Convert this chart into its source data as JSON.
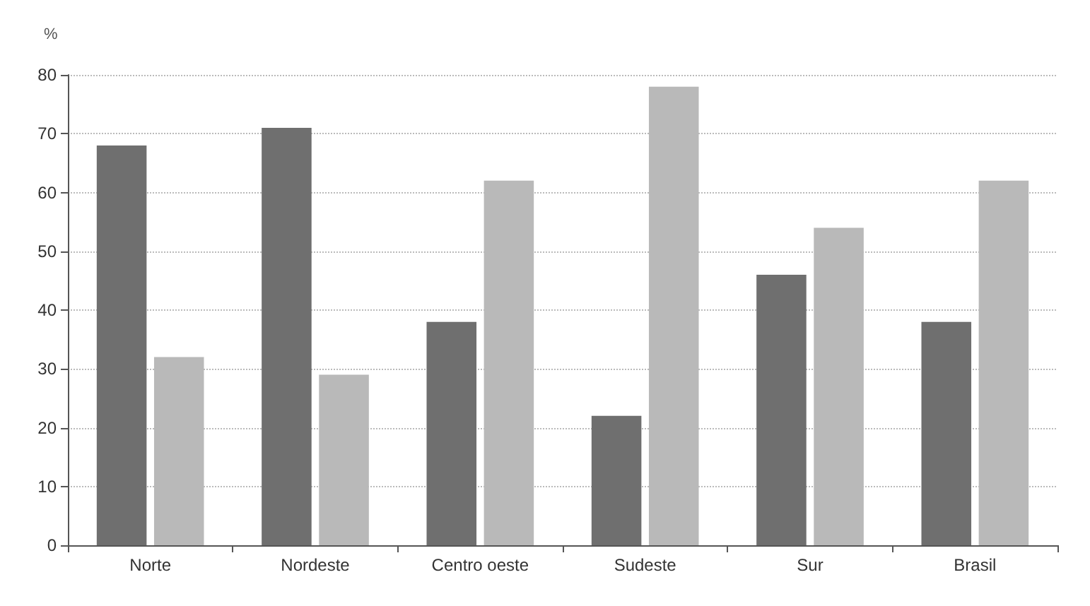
{
  "chart_data": {
    "type": "bar",
    "ylabel": "%",
    "categories": [
      "Norte",
      "Nordeste",
      "Centro oeste",
      "Sudeste",
      "Sur",
      "Brasil"
    ],
    "series": [
      {
        "color": "#6f6f6f",
        "values": [
          68,
          71,
          38,
          22,
          46,
          38
        ]
      },
      {
        "color": "#b9b9b9",
        "values": [
          32,
          29,
          62,
          78,
          54,
          62
        ]
      }
    ],
    "ylim": [
      0,
      80
    ],
    "yticks": [
      0,
      10,
      20,
      30,
      40,
      50,
      60,
      70,
      80
    ],
    "grid": "y"
  }
}
